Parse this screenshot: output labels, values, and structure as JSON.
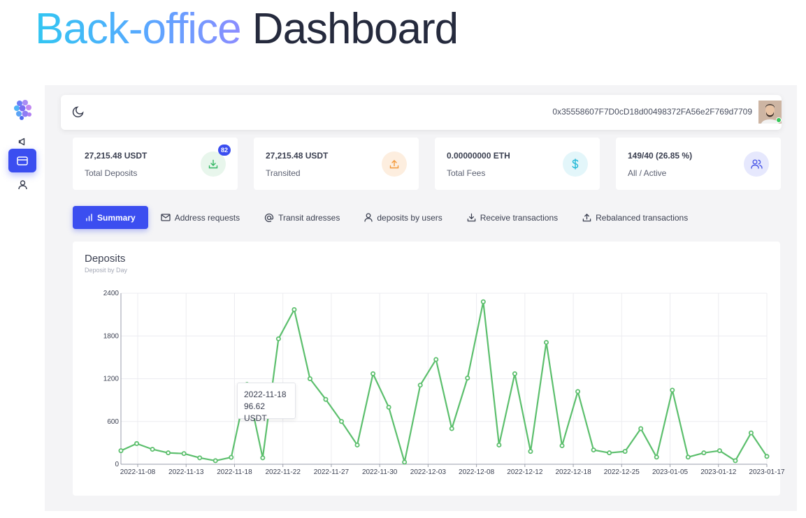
{
  "hero": {
    "title_highlight": "Back-office",
    "title_rest": "Dashboard"
  },
  "header": {
    "wallet_address": "0x35558607F7D0cD18d00498372FA56e2F769d7709"
  },
  "stats": [
    {
      "value": "27,215.48 USDT",
      "label": "Total Deposits",
      "icon": "download-icon",
      "badge": "82",
      "color": "#34b764"
    },
    {
      "value": "27,215.48 USDT",
      "label": "Transited",
      "icon": "upload-icon",
      "color": "#f39a3c"
    },
    {
      "value": "0.00000000 ETH",
      "label": "Total Fees",
      "icon": "dollar-icon",
      "color": "#20b8d6"
    },
    {
      "value": "149/40 (26.85 %)",
      "label": "All / Active",
      "icon": "users-icon",
      "color": "#4d5be8"
    }
  ],
  "tabs": [
    {
      "label": "Summary",
      "icon": "bar-chart-icon",
      "active": true
    },
    {
      "label": "Address requests",
      "icon": "mail-icon"
    },
    {
      "label": "Transit adresses",
      "icon": "at-icon"
    },
    {
      "label": "deposits by users",
      "icon": "user-icon"
    },
    {
      "label": "Receive transactions",
      "icon": "download-icon"
    },
    {
      "label": "Rebalanced transactions",
      "icon": "upload-icon"
    }
  ],
  "chart": {
    "title": "Deposits",
    "subtitle": "Deposit by Day"
  },
  "tooltip": {
    "date": "2022-11-18",
    "value": "96.62 USDT"
  },
  "chart_data": {
    "type": "line",
    "title": "Deposits",
    "subtitle": "Deposit by Day",
    "ylim": [
      0,
      2400
    ],
    "yticks": [
      0,
      600,
      1200,
      1800,
      2400
    ],
    "xtick_labels": [
      "2022-11-08",
      "2022-11-13",
      "2022-11-18",
      "2022-11-22",
      "2022-11-27",
      "2022-11-30",
      "2022-12-03",
      "2022-12-08",
      "2022-12-12",
      "2022-12-18",
      "2022-12-25",
      "2023-01-05",
      "2023-01-12",
      "2023-01-17"
    ],
    "color": "#5cbf6d",
    "values": [
      190,
      290,
      210,
      160,
      150,
      90,
      50,
      96.62,
      1120,
      90,
      1760,
      2170,
      1200,
      910,
      600,
      270,
      1270,
      800,
      30,
      1110,
      1470,
      500,
      1210,
      2280,
      270,
      1270,
      180,
      1710,
      260,
      1020,
      200,
      160,
      180,
      500,
      100,
      1040,
      100,
      160,
      190,
      50,
      440,
      110
    ],
    "grid": true
  },
  "colors": {
    "accent": "#3b4ef0",
    "line": "#5cbf6d"
  }
}
